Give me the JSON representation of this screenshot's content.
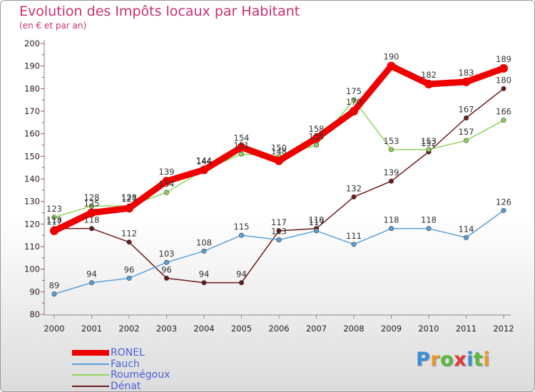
{
  "chart_data": {
    "type": "line",
    "title": "Evolution des Impôts locaux par Habitant",
    "subtitle": "(en € et par an)",
    "xlabel": "",
    "ylabel": "",
    "ylim": [
      80,
      200
    ],
    "y_ticks": [
      80,
      90,
      100,
      110,
      120,
      130,
      140,
      150,
      160,
      170,
      180,
      190,
      200
    ],
    "x": [
      "2000",
      "2001",
      "2002",
      "2003",
      "2004",
      "2005",
      "2006",
      "2007",
      "2008",
      "2009",
      "2010",
      "2011",
      "2012"
    ],
    "grid": false,
    "legend_position": "bottom-left",
    "series": [
      {
        "name": "Dénat",
        "color": "#6b1b1b",
        "values": [
          118,
          118,
          112,
          96,
          94,
          94,
          117,
          118,
          132,
          139,
          152,
          167,
          180
        ]
      },
      {
        "name": "Roumégoux",
        "color": "#8fd45a",
        "values": [
          123,
          128,
          128,
          134,
          144,
          151,
          150,
          155,
          175,
          153,
          153,
          157,
          166
        ]
      },
      {
        "name": "Fauch",
        "color": "#5aa0d8",
        "values": [
          89,
          94,
          96,
          103,
          108,
          115,
          113,
          117,
          111,
          118,
          118,
          114,
          126
        ]
      },
      {
        "name": "RONEL",
        "color": "#ee0000",
        "values": [
          117,
          125,
          127,
          139,
          144,
          154,
          148,
          158,
          170,
          190,
          182,
          183,
          189
        ]
      }
    ],
    "legend": [
      "RONEL",
      "Fauch",
      "Roumégoux",
      "Dénat"
    ]
  },
  "logo": {
    "letters": [
      "P",
      "r",
      "o",
      "x",
      "i",
      "t",
      "i"
    ],
    "colors": [
      "#3b8fd6",
      "#e8962c",
      "#5cb83c",
      "#e33b3b",
      "#3b8fd6",
      "#5cb83c",
      "#e8962c"
    ]
  }
}
